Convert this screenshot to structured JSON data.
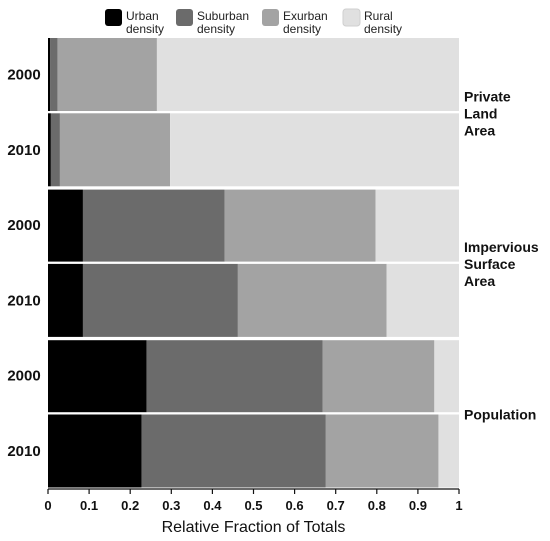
{
  "chart_data": {
    "type": "bar",
    "orientation": "horizontal",
    "stacked": true,
    "xlabel": "Relative Fraction of Totals",
    "xlim": [
      0,
      1
    ],
    "xticks": [
      "0",
      "0.1",
      "0.2",
      "0.3",
      "0.4",
      "0.5",
      "0.6",
      "0.7",
      "0.8",
      "0.9",
      "1"
    ],
    "legend_position": "top",
    "legend": [
      {
        "lines": [
          "Urban",
          "density"
        ],
        "color": "#000000"
      },
      {
        "lines": [
          "Suburban",
          "density"
        ],
        "color": "#6b6b6b"
      },
      {
        "lines": [
          "Exurban",
          "density"
        ],
        "color": "#a3a3a3"
      },
      {
        "lines": [
          "Rural",
          "density"
        ],
        "color": "#e0e0e0"
      }
    ],
    "series": [
      {
        "name": "Urban density",
        "color": "#000000"
      },
      {
        "name": "Suburban density",
        "color": "#6b6b6b"
      },
      {
        "name": "Exurban density",
        "color": "#a3a3a3"
      },
      {
        "name": "Rural density",
        "color": "#e0e0e0"
      }
    ],
    "groups": [
      {
        "label_lines": [
          "Private",
          "Land",
          "Area"
        ],
        "bars": [
          {
            "year": "2000",
            "values": [
              0.005,
              0.018,
              0.242,
              0.735
            ]
          },
          {
            "year": "2010",
            "values": [
              0.007,
              0.022,
              0.268,
              0.703
            ]
          }
        ]
      },
      {
        "label_lines": [
          "Impervious",
          "Surface",
          "Area"
        ],
        "bars": [
          {
            "year": "2000",
            "values": [
              0.085,
              0.345,
              0.367,
              0.203
            ]
          },
          {
            "year": "2010",
            "values": [
              0.085,
              0.377,
              0.362,
              0.176
            ]
          }
        ]
      },
      {
        "label_lines": [
          "Population"
        ],
        "bars": [
          {
            "year": "2000",
            "values": [
              0.24,
              0.428,
              0.272,
              0.06
            ]
          },
          {
            "year": "2010",
            "values": [
              0.228,
              0.448,
              0.274,
              0.05
            ]
          }
        ]
      }
    ]
  }
}
